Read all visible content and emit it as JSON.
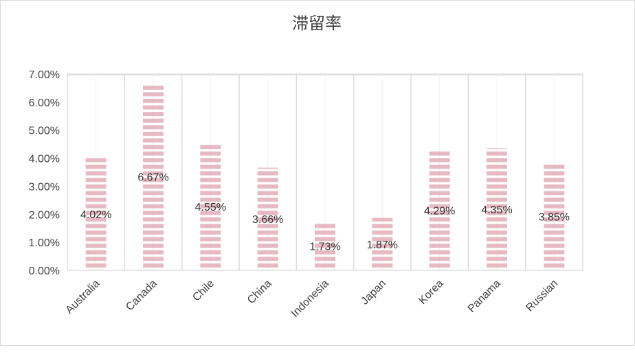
{
  "chart_data": {
    "type": "bar",
    "title": "滞留率",
    "categories": [
      "Australia",
      "Canada",
      "Chile",
      "China",
      "Indonesia",
      "Japan",
      "Korea",
      "Panama",
      "Russian"
    ],
    "values": [
      4.02,
      6.67,
      4.55,
      3.66,
      1.73,
      1.87,
      4.29,
      4.35,
      3.85
    ],
    "data_labels": [
      "4.02%",
      "6.67%",
      "4.55%",
      "3.66%",
      "1.73%",
      "1.87%",
      "4.29%",
      "4.35%",
      "3.85%"
    ],
    "yticks": [
      "0.00%",
      "1.00%",
      "2.00%",
      "3.00%",
      "4.00%",
      "5.00%",
      "6.00%",
      "7.00%"
    ],
    "ylim": [
      0,
      7
    ],
    "xlabel": "",
    "ylabel": "",
    "grid": false,
    "legend": "none",
    "colors": {
      "bar_stripe": "#e6b9c3",
      "bar_gap": "#ffffff",
      "axis": "#d0d0d0",
      "divider": "#dcdcdc"
    }
  }
}
